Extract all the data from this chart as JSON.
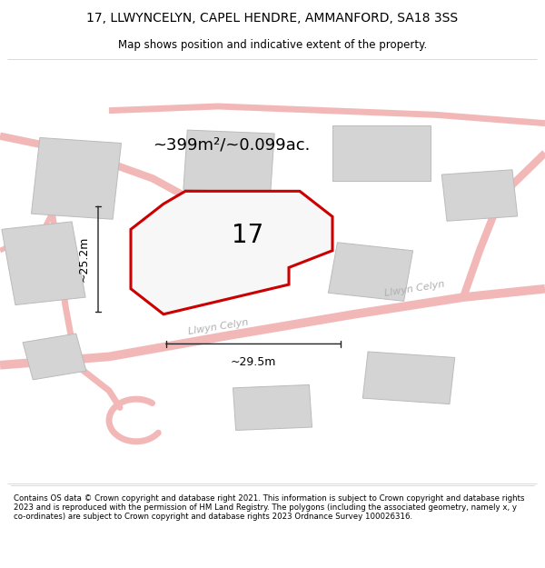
{
  "title_line1": "17, LLWYNCELYN, CAPEL HENDRE, AMMANFORD, SA18 3SS",
  "title_line2": "Map shows position and indicative extent of the property.",
  "footer_text": "Contains OS data © Crown copyright and database right 2021. This information is subject to Crown copyright and database rights 2023 and is reproduced with the permission of HM Land Registry. The polygons (including the associated geometry, namely x, y co-ordinates) are subject to Crown copyright and database rights 2023 Ordnance Survey 100026316.",
  "area_label": "~399m²/~0.099ac.",
  "width_label": "~29.5m",
  "height_label": "~25.2m",
  "plot_number": "17",
  "road_color": "#f2b8b8",
  "road_lw": 6,
  "building_face": "#d4d4d4",
  "building_edge": "#bbbbbb",
  "plot_edge_color": "#cc0000",
  "plot_edge_width": 2.2,
  "dim_line_color": "#222222",
  "road_label_color": "#b0b0b0",
  "map_bg": "#f7f7f7",
  "title_fontsize": 10,
  "subtitle_fontsize": 8.5,
  "area_fontsize": 13,
  "number_fontsize": 20,
  "dim_fontsize": 9,
  "road_fontsize": 8
}
